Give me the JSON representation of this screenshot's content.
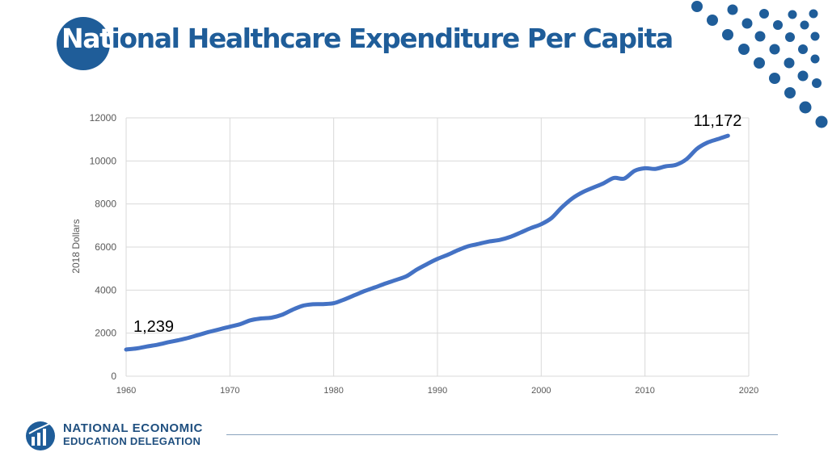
{
  "slide": {
    "title_highlight": "Nat",
    "title_rest": "ional Healthcare Expenditure Per Capita",
    "org_line1": "NATIONAL ECONOMIC",
    "org_line2": "EDUCATION DELEGATION"
  },
  "colors": {
    "brand": "#1f5d99",
    "line": "#4472c4",
    "grid": "#d9d9d9",
    "axis_text": "#595959"
  },
  "chart_data": {
    "type": "line",
    "title": "",
    "xlabel": "",
    "ylabel": "2018 Dollars",
    "xlim": [
      1960,
      2020
    ],
    "ylim": [
      0,
      12000
    ],
    "x_ticks": [
      1960,
      1970,
      1980,
      1990,
      2000,
      2010,
      2020
    ],
    "y_ticks": [
      0,
      2000,
      4000,
      6000,
      8000,
      10000,
      12000
    ],
    "grid": true,
    "series": [
      {
        "name": "National Healthcare Expenditure Per Capita",
        "x": [
          1960,
          1961,
          1962,
          1963,
          1964,
          1965,
          1966,
          1967,
          1968,
          1969,
          1970,
          1971,
          1972,
          1973,
          1974,
          1975,
          1976,
          1977,
          1978,
          1979,
          1980,
          1981,
          1982,
          1983,
          1984,
          1985,
          1986,
          1987,
          1988,
          1989,
          1990,
          1991,
          1992,
          1993,
          1994,
          1995,
          1996,
          1997,
          1998,
          1999,
          2000,
          2001,
          2002,
          2003,
          2004,
          2005,
          2006,
          2007,
          2008,
          2009,
          2010,
          2011,
          2012,
          2013,
          2014,
          2015,
          2016,
          2017,
          2018
        ],
        "values": [
          1239,
          1290,
          1380,
          1460,
          1570,
          1670,
          1780,
          1920,
          2060,
          2180,
          2300,
          2420,
          2600,
          2680,
          2720,
          2850,
          3080,
          3270,
          3340,
          3350,
          3390,
          3560,
          3760,
          3960,
          4130,
          4310,
          4470,
          4640,
          4950,
          5210,
          5450,
          5640,
          5860,
          6040,
          6150,
          6260,
          6330,
          6470,
          6670,
          6880,
          7060,
          7350,
          7850,
          8260,
          8550,
          8760,
          8960,
          9210,
          9180,
          9540,
          9660,
          9630,
          9750,
          9820,
          10080,
          10560,
          10850,
          11010,
          11172
        ]
      }
    ],
    "annotations": [
      {
        "label": "1,239",
        "x": 1960,
        "y": 1239
      },
      {
        "label": "11,172",
        "x": 2018,
        "y": 11172
      }
    ]
  }
}
